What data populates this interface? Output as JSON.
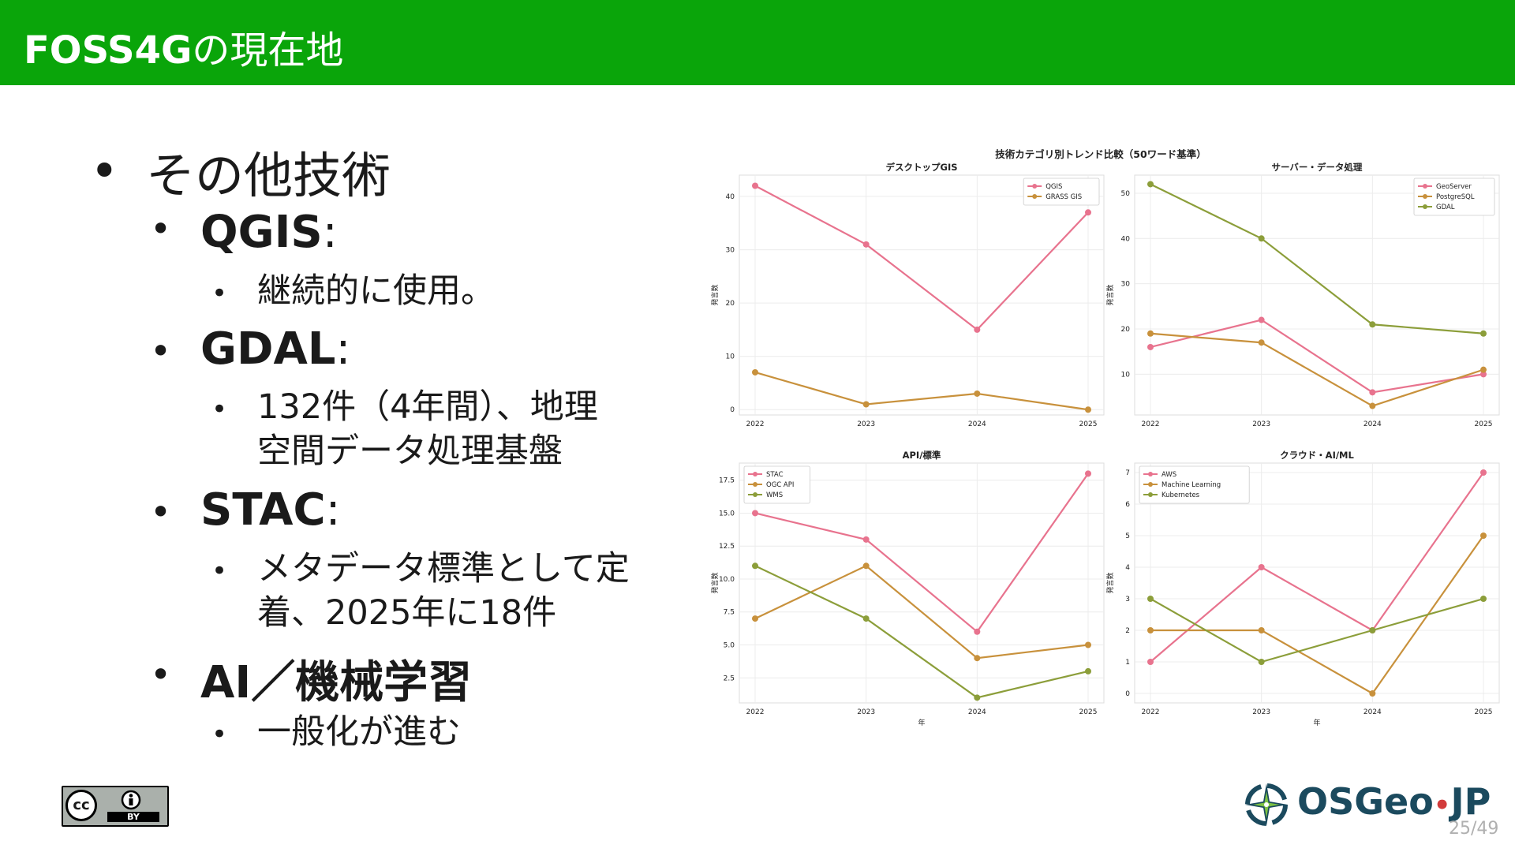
{
  "slide": {
    "title_bold": "FOSS4G",
    "title_rest": "の現在地",
    "page_number": "25/49"
  },
  "bullets": {
    "l1": "その他技術",
    "qgis_label": "QGIS",
    "qgis_colon": ":",
    "qgis_desc": "継続的に使用。",
    "gdal_label": "GDAL",
    "gdal_colon": ":",
    "gdal_desc_1": "132件（4年間）、地理",
    "gdal_desc_2": "空間データ処理基盤",
    "stac_label": "STAC",
    "stac_colon": ":",
    "stac_desc_1": "メタデータ標準として定",
    "stac_desc_2": "着、2025年に18件",
    "ai_label": "AI／機械学習",
    "ai_desc": "一般化が進む",
    "bullet_char": "•"
  },
  "license_badge": {
    "cc": "cc",
    "by": "BY"
  },
  "logo": {
    "name": "OSGeo",
    "sep": "•",
    "suffix": "JP"
  },
  "colors": {
    "header": "#0aa50a",
    "s1": "#e8738e",
    "s2": "#c8913c",
    "s3": "#8c9e3a"
  },
  "chart_data": [
    {
      "type": "line",
      "suptitle": "技術カテゴリ別トレンド比較（50ワード基準）",
      "title": "デスクトップGIS",
      "x": [
        "2022",
        "2023",
        "2024",
        "2025"
      ],
      "xlabel": "",
      "ylabel": "発言数",
      "ylim": [
        -1,
        44
      ],
      "yticks": [
        "0",
        "10",
        "20",
        "30",
        "40"
      ],
      "yticks_values": [
        0,
        10,
        20,
        30,
        40
      ],
      "legend": "top-right",
      "series": [
        {
          "name": "QGIS",
          "values": [
            42,
            31,
            15,
            37
          ]
        },
        {
          "name": "GRASS GIS",
          "values": [
            7,
            1,
            3,
            0
          ]
        }
      ]
    },
    {
      "type": "line",
      "title": "サーバー・データ処理",
      "x": [
        "2022",
        "2023",
        "2024",
        "2025"
      ],
      "xlabel": "",
      "ylabel": "発言数",
      "ylim": [
        1,
        54
      ],
      "yticks": [
        "10",
        "20",
        "30",
        "40",
        "50"
      ],
      "yticks_values": [
        10,
        20,
        30,
        40,
        50
      ],
      "legend": "top-right",
      "series": [
        {
          "name": "GeoServer",
          "values": [
            16,
            22,
            6,
            10
          ]
        },
        {
          "name": "PostgreSQL",
          "values": [
            19,
            17,
            3,
            11
          ]
        },
        {
          "name": "GDAL",
          "values": [
            52,
            40,
            21,
            19
          ]
        }
      ]
    },
    {
      "type": "line",
      "title": "API/標準",
      "x": [
        "2022",
        "2023",
        "2024",
        "2025"
      ],
      "xlabel": "年",
      "ylabel": "発言数",
      "ylim": [
        0.6,
        18.8
      ],
      "yticks": [
        "2.5",
        "5.0",
        "7.5",
        "10.0",
        "12.5",
        "15.0",
        "17.5"
      ],
      "yticks_values": [
        2.5,
        5.0,
        7.5,
        10.0,
        12.5,
        15.0,
        17.5
      ],
      "legend": "top-left",
      "series": [
        {
          "name": "STAC",
          "values": [
            15,
            13,
            6,
            18
          ]
        },
        {
          "name": "OGC API",
          "values": [
            7,
            11,
            4,
            5
          ]
        },
        {
          "name": "WMS",
          "values": [
            11,
            7,
            1,
            3
          ]
        }
      ]
    },
    {
      "type": "line",
      "title": "クラウド・AI/ML",
      "x": [
        "2022",
        "2023",
        "2024",
        "2025"
      ],
      "xlabel": "年",
      "ylabel": "発言数",
      "ylim": [
        -0.3,
        7.3
      ],
      "yticks": [
        "0",
        "1",
        "2",
        "3",
        "4",
        "5",
        "6",
        "7"
      ],
      "yticks_values": [
        0,
        1,
        2,
        3,
        4,
        5,
        6,
        7
      ],
      "legend": "top-left",
      "series": [
        {
          "name": "AWS",
          "values": [
            1,
            4,
            2,
            7
          ]
        },
        {
          "name": "Machine Learning",
          "values": [
            2,
            2,
            0,
            5
          ]
        },
        {
          "name": "Kubernetes",
          "values": [
            3,
            1,
            2,
            3
          ]
        }
      ]
    }
  ]
}
